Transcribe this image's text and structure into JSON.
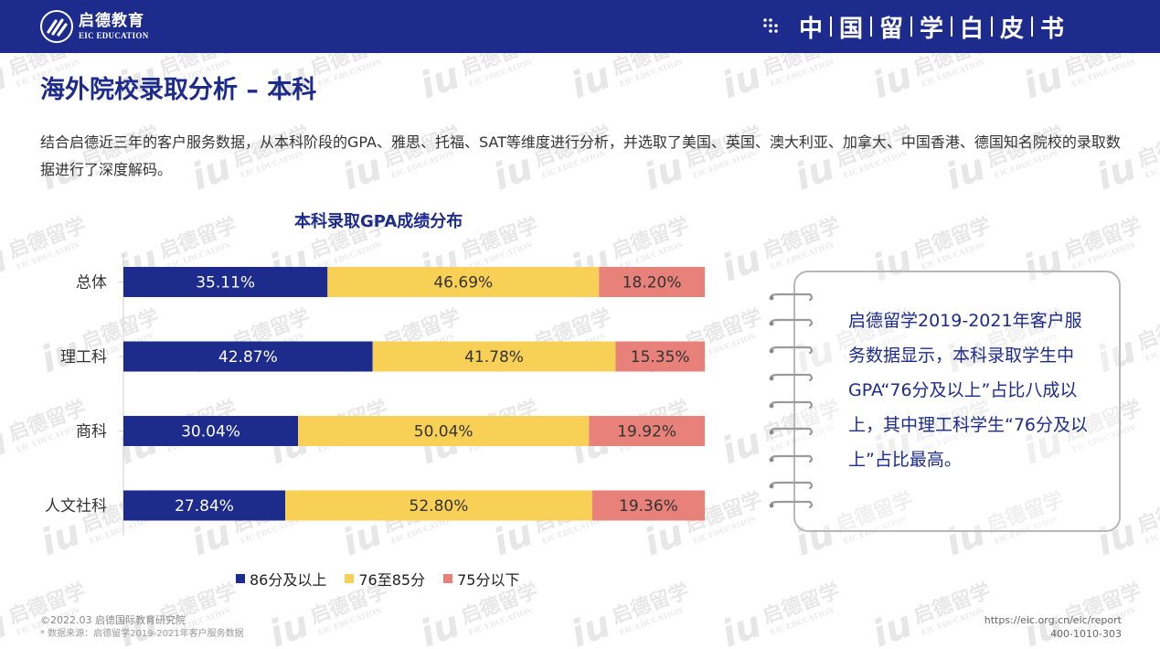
{
  "header": {
    "logo_cn": "启德教育",
    "logo_en": "EIC EDUCATION",
    "title_chars": [
      "中",
      "国",
      "留",
      "学",
      "白",
      "皮",
      "书"
    ]
  },
  "watermark": {
    "cn": "启德留学",
    "en": "EIC EDUCATION"
  },
  "page": {
    "title": "海外院校录取分析 – 本科",
    "intro": "结合启德近三年的客户服务数据，从本科阶段的GPA、雅思、托福、SAT等维度进行分析，并选取了美国、英国、澳大利亚、加拿大、中国香港、德国知名院校的录取数据进行了深度解码。"
  },
  "chart_data": {
    "type": "bar",
    "orientation": "horizontal",
    "stacked": true,
    "title": "本科录取GPA成绩分布",
    "categories": [
      "总体",
      "理工科",
      "商科",
      "人文社科"
    ],
    "series": [
      {
        "name": "86分及以上",
        "color": "#1c2b8c",
        "values": [
          35.11,
          42.87,
          30.04,
          27.84
        ],
        "labels": [
          "35.11%",
          "42.87%",
          "30.04%",
          "27.84%"
        ]
      },
      {
        "name": "76至85分",
        "color": "#f7d055",
        "values": [
          46.69,
          41.78,
          50.04,
          52.8
        ],
        "labels": [
          "46.69%",
          "41.78%",
          "50.04%",
          "52.80%"
        ]
      },
      {
        "name": "75分以下",
        "color": "#e8817a",
        "values": [
          18.2,
          15.35,
          19.92,
          19.36
        ],
        "labels": [
          "18.20%",
          "15.35%",
          "19.92%",
          "19.36%"
        ]
      }
    ],
    "xlim": [
      0,
      100
    ],
    "grid": false,
    "legend_position": "bottom"
  },
  "note": {
    "text": "启德留学2019-2021年客户服务数据显示，本科录取学生中GPA“76分及以上”占比八成以上，其中理工科学生“76分及以上”占比最高。"
  },
  "footer": {
    "copyright": "©2022.03 启德国际教育研究院",
    "source": "* 数据来源：启德留学2019-2021年客户服务数据",
    "url": "https://eic.org.cn/eic/report",
    "phone": "400-1010-303"
  }
}
